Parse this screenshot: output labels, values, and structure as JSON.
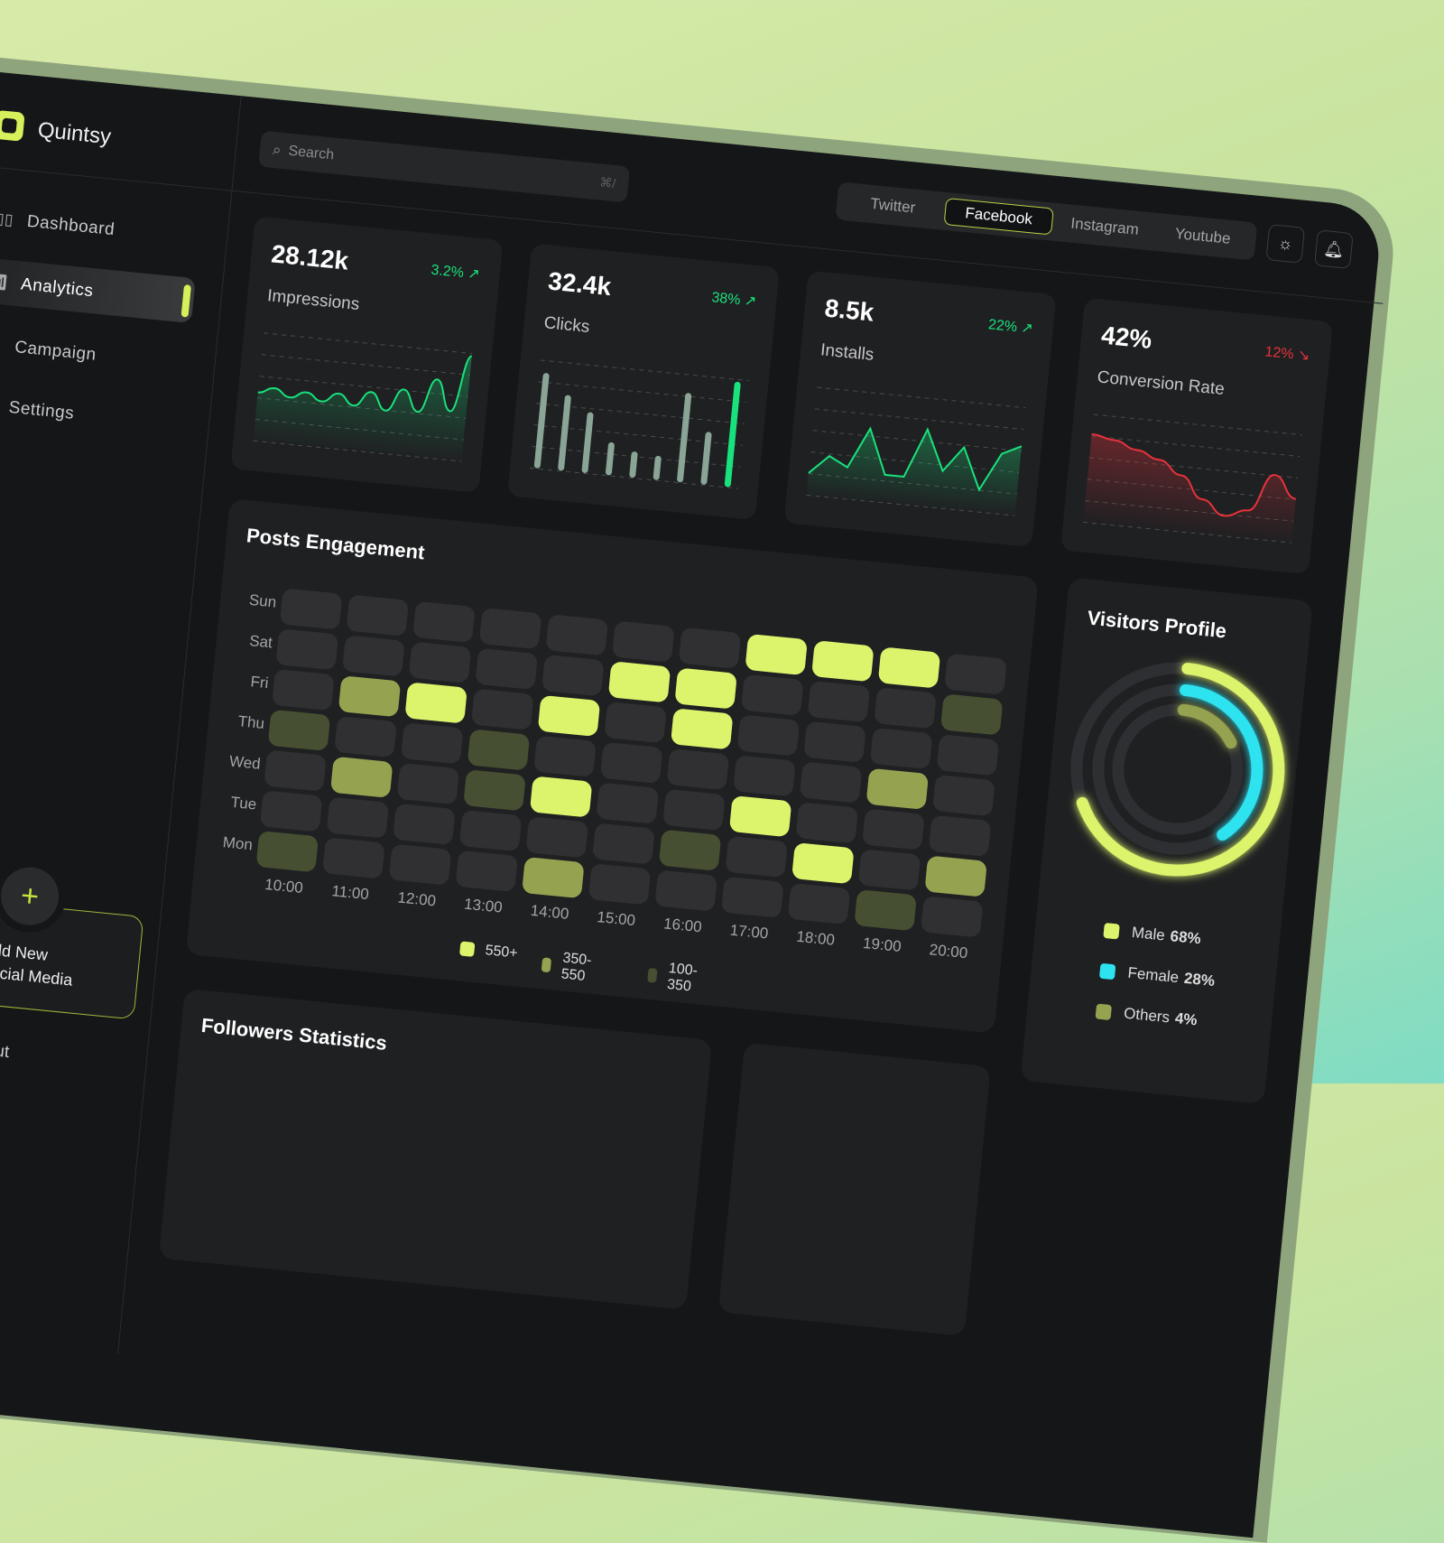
{
  "app": {
    "name": "Quintsy"
  },
  "sidebar": {
    "items": [
      {
        "label": "Dashboard",
        "icon": "layout-icon"
      },
      {
        "label": "Analytics",
        "icon": "chart-icon",
        "active": true
      },
      {
        "label": "Campaign",
        "icon": "sparkle-icon"
      },
      {
        "label": "Settings",
        "icon": "gear-icon"
      }
    ],
    "add_social": {
      "line1": "Add New",
      "line2": "Social Media"
    },
    "logout": "Logout"
  },
  "search": {
    "placeholder": "Search",
    "shortcut": "⌘/"
  },
  "tabs": [
    {
      "label": "Twitter"
    },
    {
      "label": "Facebook",
      "active": true
    },
    {
      "label": "Instagram"
    },
    {
      "label": "Youtube"
    }
  ],
  "cards": [
    {
      "value": "28.12k",
      "label": "Impressions",
      "change": "3.2%",
      "trend": "up",
      "chart": "line",
      "color": "#19e27c",
      "series": [
        40,
        46,
        38,
        45,
        37,
        47,
        36,
        52,
        34,
        58,
        36,
        72,
        40,
        100
      ]
    },
    {
      "value": "32.4k",
      "label": "Clicks",
      "change": "38%",
      "trend": "up",
      "chart": "bar",
      "color": "#19e27c",
      "series": [
        90,
        70,
        55,
        27,
        20,
        18,
        84,
        47,
        100
      ]
    },
    {
      "value": "8.5k",
      "label": "Installs",
      "change": "22%",
      "trend": "up",
      "chart": "line",
      "color": "#19e27c",
      "series": [
        12,
        32,
        22,
        65,
        18,
        18,
        70,
        28,
        55,
        12,
        52,
        62
      ]
    },
    {
      "value": "42%",
      "label": "Conversion Rate",
      "change": "12%",
      "trend": "down",
      "chart": "line",
      "color": "#e8323b",
      "series": [
        82,
        78,
        70,
        62,
        48,
        25,
        10,
        18,
        58,
        35
      ]
    }
  ],
  "engagement": {
    "title": "Posts Engagement",
    "days": [
      "Sun",
      "Sat",
      "Fri",
      "Thu",
      "Wed",
      "Tue",
      "Mon"
    ],
    "hours": [
      "10:00",
      "11:00",
      "12:00",
      "13:00",
      "14:00",
      "15:00",
      "16:00",
      "17:00",
      "18:00",
      "19:00",
      "20:00"
    ],
    "levels": [
      [
        0,
        0,
        0,
        0,
        0,
        0,
        0,
        3,
        3,
        3,
        0
      ],
      [
        0,
        0,
        0,
        0,
        0,
        3,
        3,
        0,
        0,
        0,
        1
      ],
      [
        0,
        2,
        3,
        0,
        3,
        0,
        3,
        0,
        0,
        0,
        0
      ],
      [
        1,
        0,
        0,
        1,
        0,
        0,
        0,
        0,
        0,
        2,
        0
      ],
      [
        0,
        2,
        0,
        1,
        3,
        0,
        0,
        3,
        0,
        0,
        0
      ],
      [
        0,
        0,
        0,
        0,
        0,
        0,
        1,
        0,
        3,
        0,
        2
      ],
      [
        1,
        0,
        0,
        0,
        2,
        0,
        0,
        0,
        0,
        1,
        0
      ]
    ],
    "level_colors": [
      "#303033",
      "#464f31",
      "#95a350",
      "#dcf36c"
    ],
    "legend": [
      {
        "label": "550+",
        "color": "#dcf36c"
      },
      {
        "label": "350-550",
        "color": "#95a350"
      },
      {
        "label": "100-350",
        "color": "#464f31"
      }
    ]
  },
  "visitors": {
    "title": "Visitors Profile",
    "segments": [
      {
        "label": "Male",
        "value": "68%",
        "color": "#dcf36c"
      },
      {
        "label": "Female",
        "value": "28%",
        "color": "#2de3f0"
      },
      {
        "label": "Others",
        "value": "4%",
        "color": "#95a350"
      }
    ]
  },
  "followers": {
    "title": "Followers Statistics"
  }
}
